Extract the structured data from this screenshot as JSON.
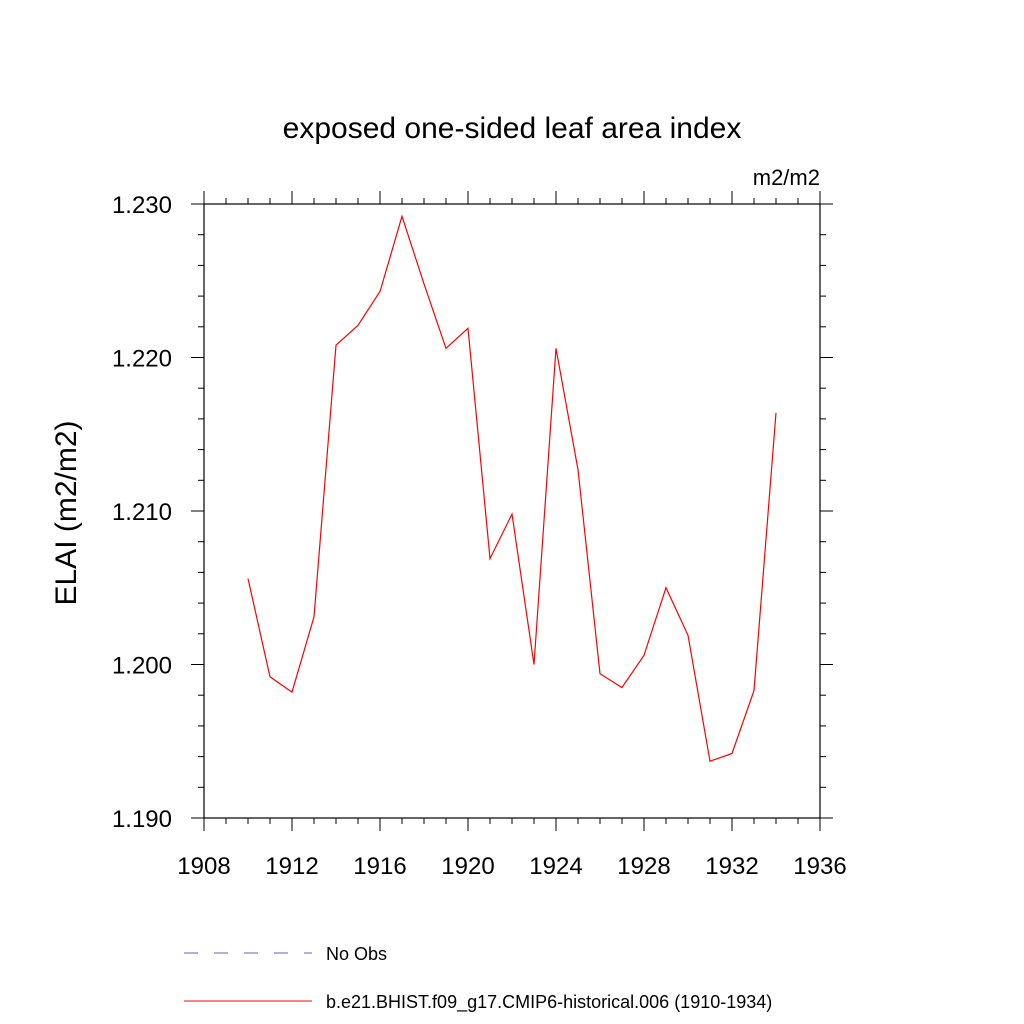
{
  "chart_data": {
    "type": "line",
    "title": "exposed one-sided leaf area index",
    "units": "m2/m2",
    "ylabel": "ELAI  (m2/m2)",
    "xlabel": "",
    "xlim": [
      1908,
      1936
    ],
    "ylim": [
      1.19,
      1.23
    ],
    "x_ticks": [
      "1908",
      "1912",
      "1916",
      "1920",
      "1924",
      "1928",
      "1932",
      "1936"
    ],
    "y_ticks": [
      "1.190",
      "1.200",
      "1.210",
      "1.220",
      "1.230"
    ],
    "x": [
      1910,
      1911,
      1912,
      1913,
      1914,
      1915,
      1916,
      1917,
      1918,
      1919,
      1920,
      1921,
      1922,
      1923,
      1924,
      1925,
      1926,
      1927,
      1928,
      1929,
      1930,
      1931,
      1932,
      1933,
      1934
    ],
    "series": [
      {
        "name": "b.e21.BHIST.f09_g17.CMIP6-historical.006 (1910-1934)",
        "color": "#ff0000",
        "style": "solid",
        "values": [
          1.2056,
          1.1992,
          1.1982,
          1.2031,
          1.2208,
          1.2221,
          1.2243,
          1.2292,
          1.2248,
          1.2206,
          1.2219,
          1.2069,
          1.2098,
          1.2,
          1.2206,
          1.2127,
          1.1994,
          1.1985,
          1.2006,
          1.205,
          1.2019,
          1.1937,
          1.1942,
          1.1983,
          1.2164
        ]
      }
    ],
    "legend": {
      "placement": "bottom",
      "entries": [
        {
          "label": "No Obs",
          "color": "#6a5acd",
          "style": "dashed"
        },
        {
          "label": "b.e21.BHIST.f09_g17.CMIP6-historical.006 (1910-1934)",
          "color": "#ff0000",
          "style": "solid"
        }
      ]
    },
    "grid": false
  }
}
